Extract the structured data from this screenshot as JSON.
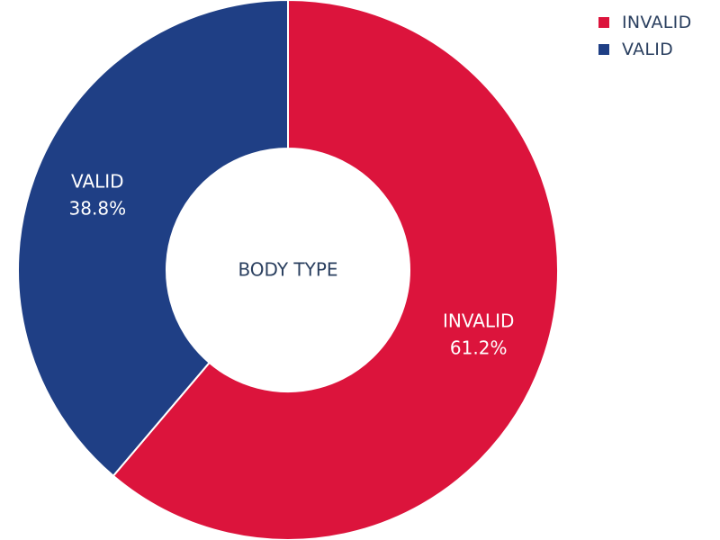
{
  "chart_data": {
    "type": "pie",
    "hole_label": "BODY TYPE",
    "slices": [
      {
        "label": "INVALID",
        "value": 61.2,
        "display": "61.2%",
        "color": "#dc143c"
      },
      {
        "label": "VALID",
        "value": 38.8,
        "display": "38.8%",
        "color": "#1f3f85"
      }
    ],
    "legend": {
      "placement": "top-right",
      "items": [
        {
          "label": "INVALID",
          "color": "#dc143c"
        },
        {
          "label": "VALID",
          "color": "#1f3f85"
        }
      ]
    }
  }
}
